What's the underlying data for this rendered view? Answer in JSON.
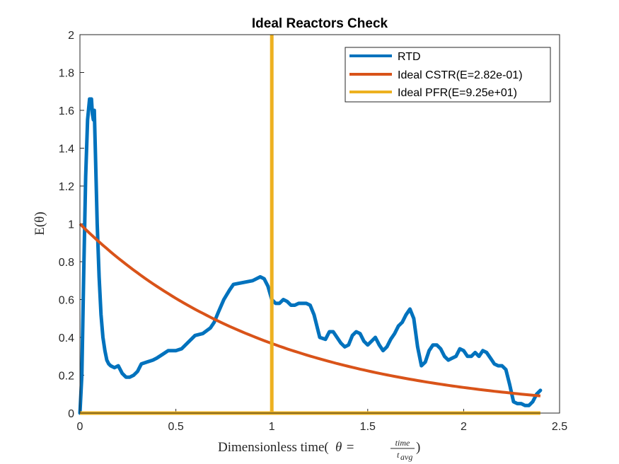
{
  "chart_data": {
    "type": "line",
    "title": "Ideal Reactors Check",
    "xlabel": {
      "prefix": "Dimensionless time(",
      "theta": "θ",
      "equals": " = ",
      "numerator": "time",
      "denominator": "t",
      "denominator_sub": "avg",
      "suffix": ")"
    },
    "ylabel": {
      "text": "E(θ)"
    },
    "xlim": [
      0,
      2.5
    ],
    "ylim": [
      0,
      2
    ],
    "x_ticks": [
      "0",
      "0.5",
      "1",
      "1.5",
      "2",
      "2.5"
    ],
    "x_tick_values": [
      0,
      0.5,
      1,
      1.5,
      2,
      2.5
    ],
    "y_ticks": [
      "0",
      "0.2",
      "0.4",
      "0.6",
      "0.8",
      "1",
      "1.2",
      "1.4",
      "1.6",
      "1.8",
      "2"
    ],
    "y_tick_values": [
      0,
      0.2,
      0.4,
      0.6,
      0.8,
      1,
      1.2,
      1.4,
      1.6,
      1.8,
      2
    ],
    "grid": false,
    "legend_position": "top-right",
    "series": [
      {
        "name": "RTD",
        "color": "#0072BD",
        "x": [
          0,
          0.01,
          0.02,
          0.03,
          0.04,
          0.05,
          0.06,
          0.065,
          0.07,
          0.075,
          0.08,
          0.09,
          0.1,
          0.11,
          0.12,
          0.13,
          0.14,
          0.15,
          0.16,
          0.18,
          0.2,
          0.22,
          0.24,
          0.26,
          0.28,
          0.3,
          0.32,
          0.35,
          0.38,
          0.4,
          0.43,
          0.46,
          0.5,
          0.53,
          0.56,
          0.6,
          0.64,
          0.68,
          0.7,
          0.72,
          0.75,
          0.78,
          0.8,
          0.85,
          0.9,
          0.94,
          0.96,
          0.98,
          1.0,
          1.02,
          1.04,
          1.06,
          1.08,
          1.1,
          1.12,
          1.14,
          1.16,
          1.18,
          1.2,
          1.22,
          1.25,
          1.28,
          1.3,
          1.32,
          1.34,
          1.36,
          1.38,
          1.4,
          1.42,
          1.44,
          1.46,
          1.48,
          1.5,
          1.52,
          1.54,
          1.56,
          1.58,
          1.6,
          1.62,
          1.64,
          1.66,
          1.68,
          1.7,
          1.72,
          1.74,
          1.76,
          1.78,
          1.8,
          1.82,
          1.84,
          1.86,
          1.88,
          1.9,
          1.92,
          1.94,
          1.96,
          1.98,
          2.0,
          2.02,
          2.04,
          2.06,
          2.08,
          2.1,
          2.12,
          2.14,
          2.16,
          2.18,
          2.2,
          2.22,
          2.24,
          2.26,
          2.28,
          2.3,
          2.32,
          2.34,
          2.36,
          2.38,
          2.4
        ],
        "y": [
          0.0,
          0.2,
          0.75,
          1.25,
          1.55,
          1.66,
          1.66,
          1.58,
          1.55,
          1.6,
          1.4,
          1.0,
          0.72,
          0.52,
          0.4,
          0.33,
          0.28,
          0.26,
          0.25,
          0.24,
          0.25,
          0.21,
          0.19,
          0.19,
          0.2,
          0.22,
          0.26,
          0.27,
          0.28,
          0.29,
          0.31,
          0.33,
          0.33,
          0.34,
          0.37,
          0.41,
          0.42,
          0.45,
          0.48,
          0.53,
          0.6,
          0.65,
          0.68,
          0.69,
          0.7,
          0.72,
          0.71,
          0.67,
          0.6,
          0.58,
          0.58,
          0.6,
          0.59,
          0.57,
          0.57,
          0.58,
          0.58,
          0.58,
          0.57,
          0.52,
          0.4,
          0.39,
          0.43,
          0.43,
          0.4,
          0.37,
          0.35,
          0.36,
          0.41,
          0.43,
          0.42,
          0.38,
          0.36,
          0.38,
          0.4,
          0.36,
          0.33,
          0.35,
          0.39,
          0.42,
          0.46,
          0.48,
          0.52,
          0.55,
          0.5,
          0.35,
          0.25,
          0.27,
          0.33,
          0.36,
          0.36,
          0.34,
          0.3,
          0.28,
          0.29,
          0.3,
          0.34,
          0.33,
          0.3,
          0.3,
          0.32,
          0.3,
          0.33,
          0.32,
          0.29,
          0.26,
          0.25,
          0.25,
          0.23,
          0.15,
          0.06,
          0.05,
          0.05,
          0.04,
          0.04,
          0.06,
          0.1,
          0.12
        ]
      },
      {
        "name": "Ideal CSTR(E=2.82e-01)",
        "color": "#D95319",
        "function": "exp(-x)",
        "x_range": [
          0,
          2.4
        ]
      },
      {
        "name": "Ideal PFR(E=9.25e+01)",
        "color": "#EDB120",
        "segments": [
          {
            "x": [
              0,
              2.4
            ],
            "y": [
              0,
              0
            ]
          },
          {
            "x": [
              1,
              1
            ],
            "y": [
              0,
              2
            ]
          }
        ]
      }
    ]
  }
}
